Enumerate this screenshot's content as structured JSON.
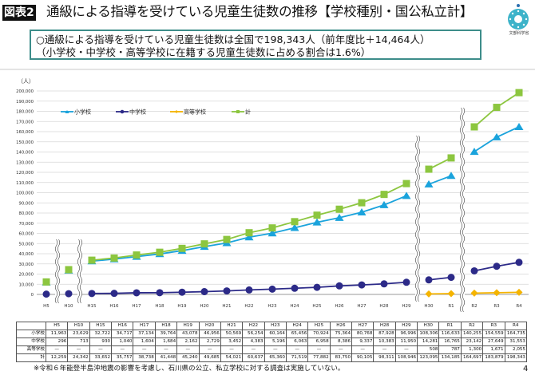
{
  "header": {
    "badge": "図表2",
    "title": "通級による指導を受けている児童生徒数の推移【学校種別・国公私立計】",
    "logo_text": "文部科学省"
  },
  "summary": {
    "line1": "○通級による指導を受けている児童生徒数は全国で198,343人（前年度比＋14,464人）",
    "line2": "（小学校・中学校・高等学校に在籍する児童生徒数に占める割合は1.6%）"
  },
  "chart_data": {
    "type": "line",
    "ylabel": "（人）",
    "ylim": [
      0,
      200000
    ],
    "ytick_step": 10000,
    "grid": true,
    "legend_position": "top-left",
    "categories": [
      "H5",
      "H10",
      "H15",
      "H16",
      "H17",
      "H18",
      "H19",
      "H20",
      "H21",
      "H22",
      "H23",
      "H24",
      "H25",
      "H26",
      "H27",
      "H28",
      "H29",
      "H30",
      "R1",
      "R2",
      "R3",
      "R4"
    ],
    "axis_breaks_after": [
      "H5",
      "H10",
      "H29",
      "R1"
    ],
    "series": [
      {
        "name": "小学校",
        "color": "#1aa3dc",
        "marker": "triangle",
        "values": [
          11963,
          23629,
          32722,
          34717,
          37134,
          39764,
          43078,
          46956,
          50569,
          56254,
          60164,
          65456,
          70924,
          75364,
          80768,
          87928,
          96996,
          108306,
          116633,
          140255,
          154559,
          164735
        ]
      },
      {
        "name": "中学校",
        "color": "#2c2a88",
        "marker": "circle",
        "values": [
          296,
          713,
          930,
          1040,
          1604,
          1684,
          2162,
          2729,
          3452,
          4383,
          5196,
          6063,
          6958,
          8386,
          9337,
          10383,
          11950,
          14281,
          16765,
          23142,
          27649,
          31553
        ]
      },
      {
        "name": "高等学校",
        "color": "#f5b400",
        "marker": "diamond",
        "values": [
          null,
          null,
          null,
          null,
          null,
          null,
          null,
          null,
          null,
          null,
          null,
          null,
          null,
          null,
          null,
          null,
          null,
          508,
          787,
          1300,
          1671,
          2055
        ]
      },
      {
        "name": "計",
        "color": "#8cc63f",
        "marker": "square",
        "values": [
          12259,
          24342,
          33652,
          35757,
          38738,
          41448,
          45240,
          49685,
          54021,
          60637,
          65360,
          71519,
          77882,
          83750,
          90105,
          98311,
          108946,
          123095,
          134185,
          164697,
          183879,
          198343
        ]
      }
    ]
  },
  "table": {
    "rows": [
      {
        "label": "小学校",
        "cells": [
          "11,963",
          "23,629",
          "32,722",
          "34,717",
          "37,134",
          "39,764",
          "43,078",
          "46,956",
          "50,569",
          "56,254",
          "60,164",
          "65,456",
          "70,924",
          "75,364",
          "80,768",
          "87,928",
          "96,996",
          "108,306",
          "116,633",
          "140,255",
          "154,559",
          "164,735"
        ]
      },
      {
        "label": "中学校",
        "cells": [
          "296",
          "713",
          "930",
          "1,040",
          "1,604",
          "1,684",
          "2,162",
          "2,729",
          "3,452",
          "4,383",
          "5,196",
          "6,063",
          "6,958",
          "8,386",
          "9,337",
          "10,383",
          "11,950",
          "14,281",
          "16,765",
          "23,142",
          "27,649",
          "31,553"
        ]
      },
      {
        "label": "高等学校",
        "cells": [
          "—",
          "—",
          "—",
          "—",
          "—",
          "—",
          "—",
          "—",
          "—",
          "—",
          "—",
          "—",
          "—",
          "—",
          "—",
          "—",
          "—",
          "508",
          "787",
          "1,300",
          "1,671",
          "2,055"
        ]
      },
      {
        "label": "計",
        "cells": [
          "12,259",
          "24,342",
          "33,652",
          "35,757",
          "38,738",
          "41,448",
          "45,240",
          "49,685",
          "54,021",
          "60,637",
          "65,360",
          "71,519",
          "77,882",
          "83,750",
          "90,105",
          "98,311",
          "108,946",
          "123,095",
          "134,185",
          "164,697",
          "183,879",
          "198,343"
        ]
      }
    ]
  },
  "footer": {
    "note": "※令和６年能登半島沖地震の影響を考慮し、石川県の公立、私立学校に対する調査は実施していない。",
    "page_number": "4"
  }
}
